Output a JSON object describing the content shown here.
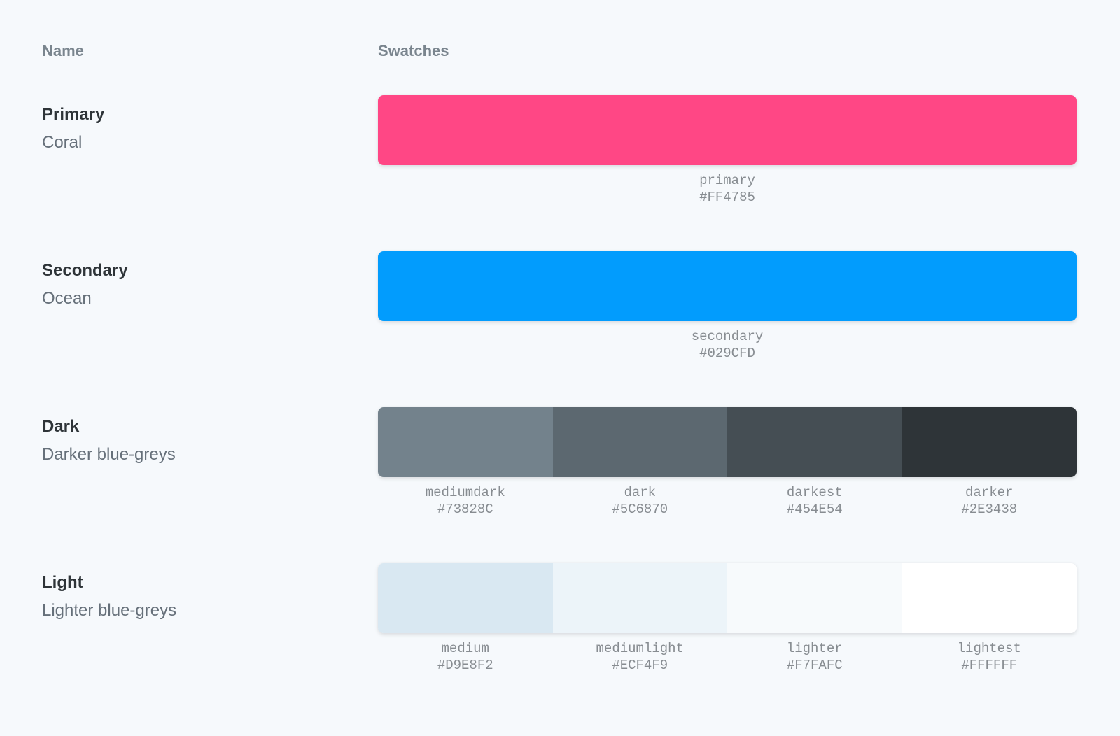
{
  "page": {
    "background": "#F6F9FC"
  },
  "header": {
    "name_label": "Name",
    "swatches_label": "Swatches"
  },
  "palette": [
    {
      "title": "Primary",
      "subtitle": "Coral",
      "swatches": [
        {
          "name": "primary",
          "hex": "#FF4785"
        }
      ]
    },
    {
      "title": "Secondary",
      "subtitle": "Ocean",
      "swatches": [
        {
          "name": "secondary",
          "hex": "#029CFD"
        }
      ]
    },
    {
      "title": "Dark",
      "subtitle": "Darker blue-greys",
      "swatches": [
        {
          "name": "mediumdark",
          "hex": "#73828C"
        },
        {
          "name": "dark",
          "hex": "#5C6870"
        },
        {
          "name": "darkest",
          "hex": "#454E54"
        },
        {
          "name": "darker",
          "hex": "#2E3438"
        }
      ]
    },
    {
      "title": "Light",
      "subtitle": "Lighter blue-greys",
      "swatches": [
        {
          "name": "medium",
          "hex": "#D9E8F2"
        },
        {
          "name": "mediumlight",
          "hex": "#ECF4F9"
        },
        {
          "name": "lighter",
          "hex": "#F7FAFC"
        },
        {
          "name": "lightest",
          "hex": "#FFFFFF"
        }
      ]
    }
  ]
}
